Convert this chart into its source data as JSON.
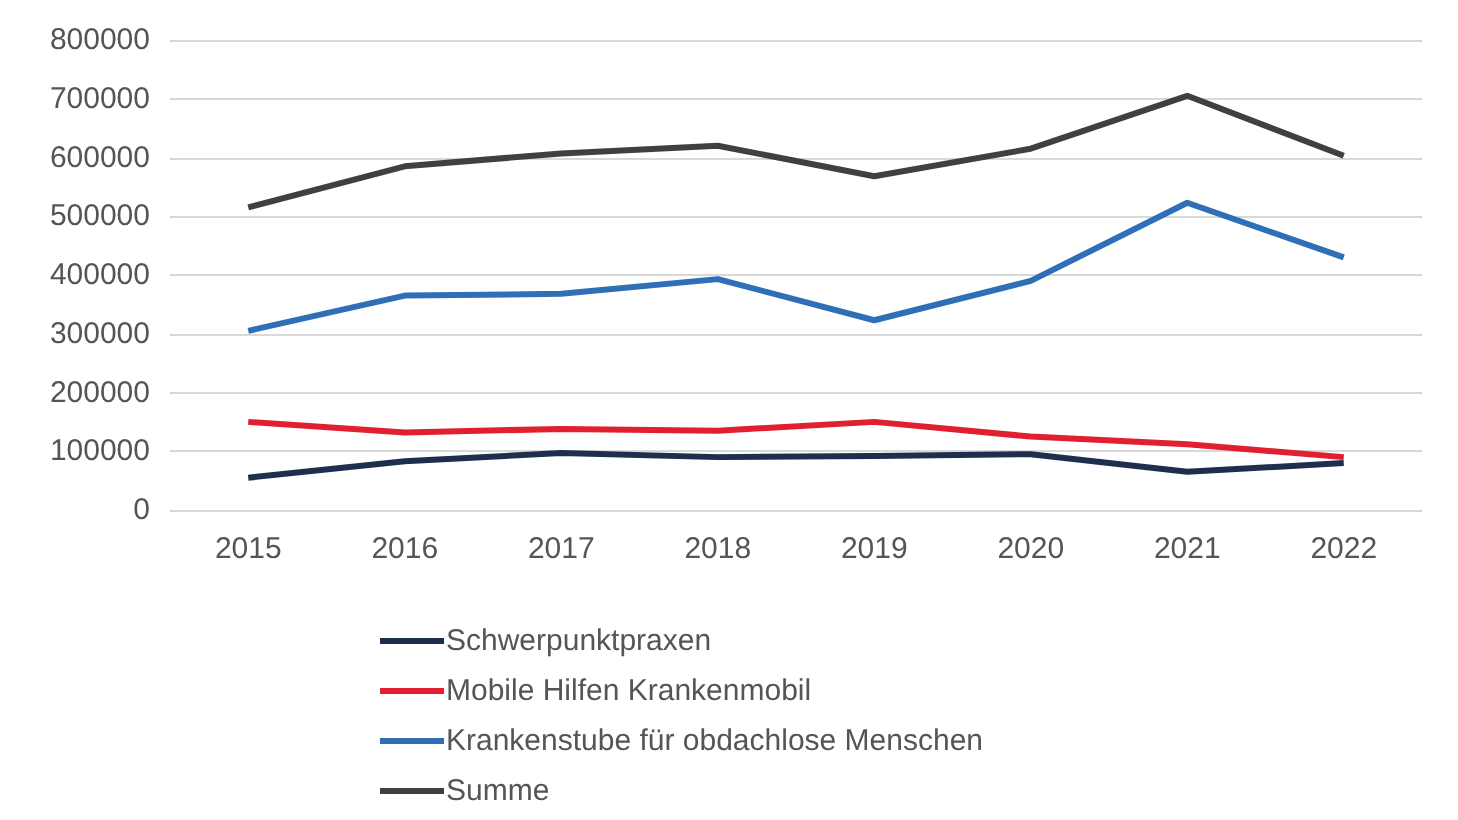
{
  "chart_data": {
    "type": "line",
    "categories": [
      "2015",
      "2016",
      "2017",
      "2018",
      "2019",
      "2020",
      "2021",
      "2022"
    ],
    "series": [
      {
        "name": "Schwerpunktpraxen",
        "color": "#1f2d4e",
        "values": [
          55000,
          83000,
          97000,
          90000,
          92000,
          95000,
          65000,
          80000
        ]
      },
      {
        "name": "Mobile Hilfen Krankenmobil",
        "color": "#e0202e",
        "values": [
          150000,
          132000,
          138000,
          135000,
          150000,
          125000,
          112000,
          90000
        ]
      },
      {
        "name": "Krankenstube für obdachlose Menschen",
        "color": "#2e6fb5",
        "values": [
          305000,
          365000,
          368000,
          393000,
          323000,
          390000,
          523000,
          430000
        ]
      },
      {
        "name": "Summe",
        "color": "#404040",
        "values": [
          515000,
          585000,
          607000,
          620000,
          568000,
          615000,
          705000,
          603000
        ]
      }
    ],
    "ylim": [
      0,
      800000
    ],
    "yticks": [
      0,
      100000,
      200000,
      300000,
      400000,
      500000,
      600000,
      700000,
      800000
    ],
    "grid": "y",
    "legend": "bottom",
    "marker": "none",
    "line_style": "solid"
  }
}
